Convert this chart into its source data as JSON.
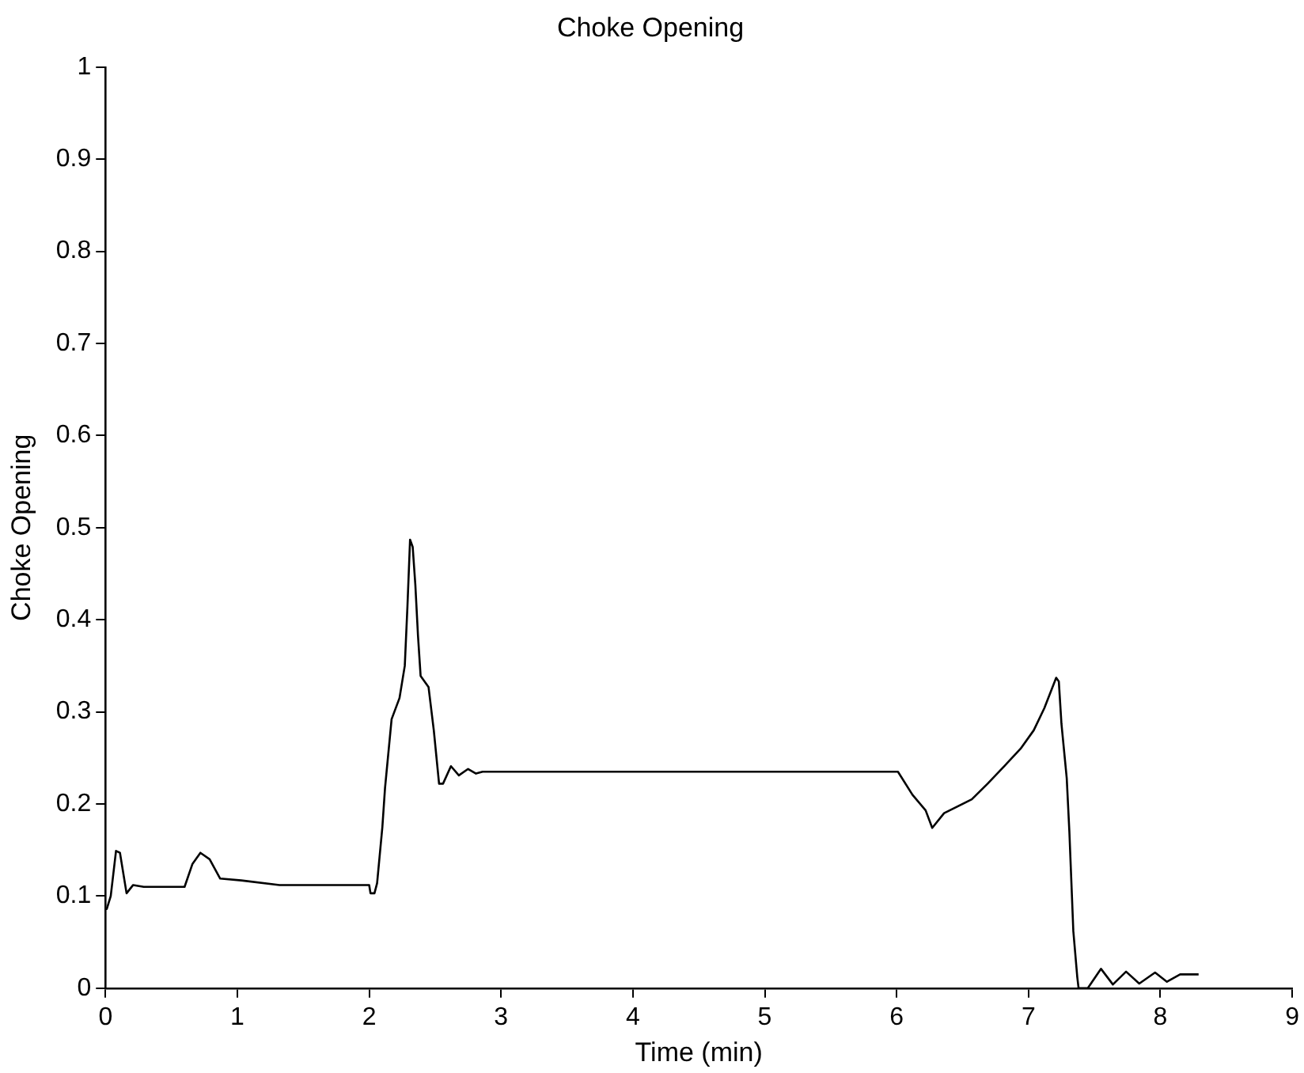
{
  "chart_data": {
    "type": "line",
    "title": "Choke Opening",
    "xlabel": "Time (min)",
    "ylabel": "Choke Opening",
    "xlim": [
      0,
      9
    ],
    "xticks": [
      0,
      1,
      2,
      3,
      4,
      5,
      6,
      7,
      8,
      9
    ],
    "ylim": [
      0,
      1
    ],
    "yticks": [
      0,
      0.1,
      0.2,
      0.3,
      0.4,
      0.5,
      0.6,
      0.7,
      0.8,
      0.9,
      1
    ],
    "grid": false,
    "legend": false,
    "marker": "none",
    "line_style": "solid",
    "series": [
      {
        "color": "#000000",
        "x": [
          0,
          0.01,
          0.04,
          0.08,
          0.11,
          0.16,
          0.21,
          0.29,
          0.6,
          0.66,
          0.72,
          0.79,
          0.87,
          1.03,
          1.32,
          2.0,
          2.01,
          2.04,
          2.06,
          2.1,
          2.12,
          2.17,
          2.23,
          2.27,
          2.29,
          2.31,
          2.33,
          2.35,
          2.37,
          2.39,
          2.45,
          2.49,
          2.53,
          2.56,
          2.62,
          2.68,
          2.75,
          2.81,
          2.86,
          6.01,
          6.12,
          6.22,
          6.27,
          6.36,
          6.57,
          6.69,
          6.81,
          6.94,
          7.04,
          7.12,
          7.21,
          7.23,
          7.25,
          7.29,
          7.31,
          7.34,
          7.37,
          7.38,
          7.45,
          7.55,
          7.64,
          7.74,
          7.84,
          7.96,
          8.05,
          8.15,
          8.29
        ],
        "values": [
          0.086,
          0.086,
          0.1,
          0.149,
          0.147,
          0.103,
          0.112,
          0.11,
          0.11,
          0.135,
          0.147,
          0.14,
          0.119,
          0.117,
          0.112,
          0.112,
          0.103,
          0.103,
          0.114,
          0.175,
          0.217,
          0.292,
          0.315,
          0.35,
          0.414,
          0.487,
          0.479,
          0.438,
          0.383,
          0.339,
          0.327,
          0.28,
          0.222,
          0.222,
          0.241,
          0.231,
          0.238,
          0.233,
          0.235,
          0.235,
          0.21,
          0.193,
          0.174,
          0.19,
          0.205,
          0.222,
          0.24,
          0.26,
          0.28,
          0.304,
          0.337,
          0.333,
          0.287,
          0.228,
          0.17,
          0.062,
          0.012,
          0,
          0,
          0.021,
          0.004,
          0.018,
          0.005,
          0.017,
          0.007,
          0.015,
          0.015
        ]
      }
    ]
  }
}
